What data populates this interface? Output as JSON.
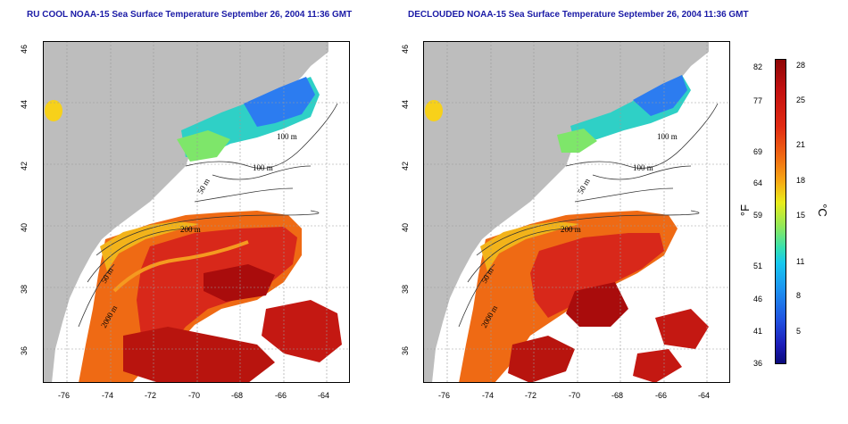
{
  "left_panel": {
    "title": "RU COOL NOAA-15 Sea Surface Temperature September 26, 2004 11:36 GMT",
    "x_ticks": [
      "-76",
      "-74",
      "-72",
      "-70",
      "-68",
      "-66",
      "-64"
    ],
    "y_ticks": [
      "46",
      "44",
      "42",
      "40",
      "38",
      "36"
    ],
    "contour_labels": [
      "100 m",
      "100 m",
      "50 m",
      "200 m",
      "50 m",
      "2000 m"
    ]
  },
  "right_panel": {
    "title": "DECLOUDED NOAA-15 Sea Surface Temperature September 26, 2004 11:36 GMT",
    "x_ticks": [
      "-76",
      "-74",
      "-72",
      "-70",
      "-68",
      "-66",
      "-64"
    ],
    "y_ticks": [
      "46",
      "44",
      "42",
      "40",
      "38",
      "36"
    ],
    "contour_labels": [
      "100 m",
      "100 m",
      "50 m",
      "200 m",
      "50 m",
      "2000 m"
    ]
  },
  "colorbar": {
    "fahrenheit_ticks": [
      "82",
      "77",
      "69",
      "64",
      "59",
      "51",
      "46",
      "41",
      "36"
    ],
    "celsius_ticks": [
      "28",
      "25",
      "21",
      "18",
      "15",
      "11",
      "8",
      "5"
    ],
    "fahrenheit_unit": "°F",
    "celsius_unit": "°C"
  },
  "colors": {
    "title": "#1a1aa6",
    "land": "#bdbdbd",
    "hot": "#c81414",
    "warm": "#f06a12",
    "cool": "#2a7ff0"
  }
}
